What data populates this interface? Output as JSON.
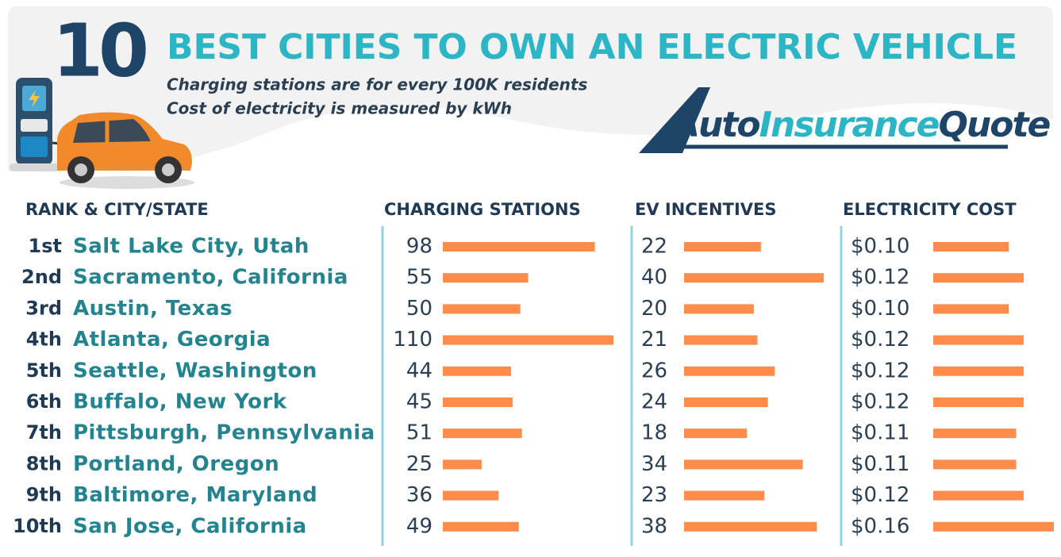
{
  "header": {
    "number": "10",
    "title": "BEST CITIES TO OWN AN ELECTRIC VEHICLE",
    "subtitle_lines": [
      "Charging stations are for every 100K residents",
      "Cost of electricity is measured by kWh"
    ],
    "logo_parts": [
      "Auto",
      "Insurance",
      "Quote"
    ]
  },
  "chart_data": {
    "type": "bar",
    "orientation": "horizontal",
    "category_header": "RANK & CITY/STATE",
    "ranks": [
      "1st",
      "2nd",
      "3rd",
      "4th",
      "5th",
      "6th",
      "7th",
      "8th",
      "9th",
      "10th"
    ],
    "categories": [
      "Salt Lake City, Utah",
      "Sacramento, California",
      "Austin, Texas",
      "Atlanta, Georgia",
      "Seattle, Washington",
      "Buffalo, New York",
      "Pittsburgh, Pennsylvania",
      "Portland, Oregon",
      "Baltimore, Maryland",
      "San Jose, California"
    ],
    "series": [
      {
        "name": "CHARGING STATIONS",
        "color": "#ff8c4a",
        "values": [
          98,
          55,
          50,
          110,
          44,
          45,
          51,
          25,
          36,
          49
        ]
      },
      {
        "name": "EV INCENTIVES",
        "color": "#ff8c4a",
        "values": [
          22,
          40,
          20,
          21,
          26,
          24,
          18,
          34,
          23,
          38
        ]
      },
      {
        "name": "ELECTRICITY COST",
        "color": "#ff8c4a",
        "values": [
          0.1,
          0.12,
          0.1,
          0.12,
          0.12,
          0.12,
          0.11,
          0.11,
          0.12,
          0.16
        ],
        "value_labels": [
          "$0.10",
          "$0.12",
          "$0.10",
          "$0.12",
          "$0.12",
          "$0.12",
          "$0.11",
          "$0.11",
          "$0.12",
          "$0.16"
        ]
      }
    ]
  }
}
